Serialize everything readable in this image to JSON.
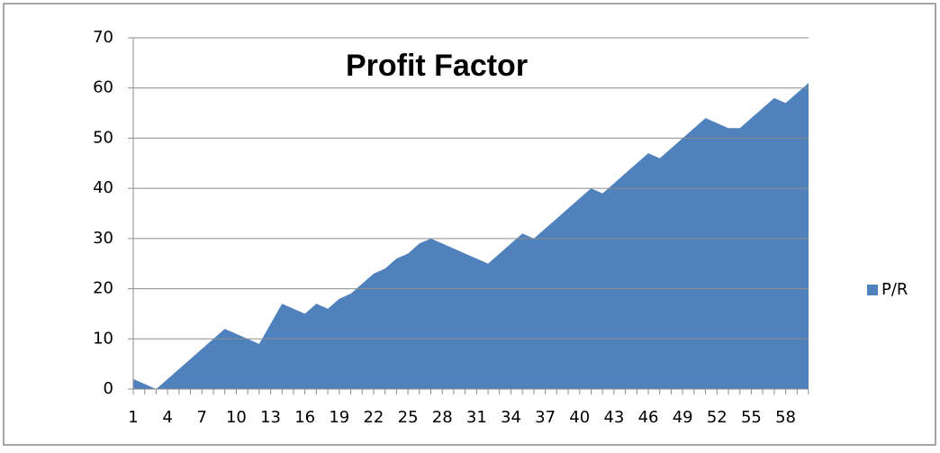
{
  "chart_data": {
    "type": "area",
    "title": "Profit Factor",
    "categories": [
      1,
      null,
      null,
      4,
      null,
      null,
      7,
      null,
      null,
      10,
      null,
      null,
      13,
      null,
      null,
      16,
      null,
      null,
      19,
      null,
      null,
      22,
      null,
      null,
      25,
      null,
      null,
      28,
      null,
      null,
      31,
      null,
      null,
      34,
      null,
      null,
      37,
      null,
      null,
      40,
      null,
      null,
      43,
      null,
      null,
      46,
      null,
      null,
      49,
      null,
      null,
      52,
      null,
      null,
      55,
      null,
      null,
      58,
      null,
      null
    ],
    "series": [
      {
        "name": "P/R",
        "color": "#4f81bd",
        "values": [
          2,
          1,
          0,
          2,
          4,
          6,
          8,
          10,
          12,
          11,
          10,
          9,
          13,
          17,
          16,
          15,
          17,
          16,
          18,
          19,
          21,
          23,
          24,
          26,
          27,
          29,
          30,
          29,
          28,
          27,
          26,
          25,
          27,
          29,
          31,
          30,
          32,
          34,
          36,
          38,
          40,
          39,
          41,
          43,
          45,
          47,
          46,
          48,
          50,
          52,
          54,
          53,
          52,
          52,
          54,
          56,
          58,
          57,
          59,
          61
        ]
      }
    ],
    "ylim": [
      0,
      70
    ],
    "yticks": [
      0,
      10,
      20,
      30,
      40,
      50,
      60,
      70
    ],
    "grid": true,
    "legend": "right"
  }
}
